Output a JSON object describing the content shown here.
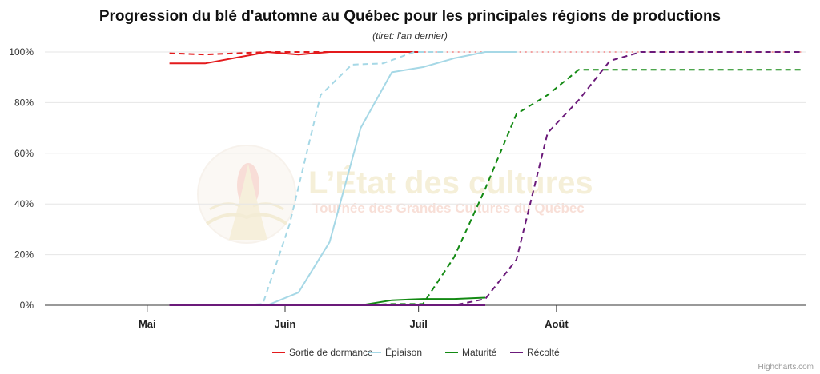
{
  "chart_data": {
    "type": "line",
    "title": "Progression du blé d'automne au Québec pour les principales régions de productions",
    "subtitle": "(tiret: l'an dernier)",
    "ylim": [
      0,
      100
    ],
    "yticks": [
      "0%",
      "20%",
      "40%",
      "60%",
      "80%",
      "100%"
    ],
    "ytick_values": [
      0,
      20,
      40,
      60,
      80,
      100
    ],
    "xlim": [
      "2024-04-08",
      "2024-09-26"
    ],
    "xticks": [
      {
        "date": "2024-05-01",
        "label": "Mai"
      },
      {
        "date": "2024-06-01",
        "label": "Juin"
      },
      {
        "date": "2024-07-01",
        "label": "Juil"
      },
      {
        "date": "2024-08-01",
        "label": "Août"
      }
    ],
    "grid": true,
    "legend_position": "bottom-center",
    "series": [
      {
        "name": "Sortie de dormance",
        "color": "#e31a1c",
        "dash": false,
        "points": [
          [
            "2024-05-06",
            95.5
          ],
          [
            "2024-05-14",
            95.5
          ],
          [
            "2024-05-28",
            100
          ],
          [
            "2024-06-04",
            99
          ],
          [
            "2024-06-11",
            100
          ],
          [
            "2024-06-18",
            100
          ],
          [
            "2024-06-25",
            100
          ],
          [
            "2024-07-01",
            100
          ]
        ]
      },
      {
        "name": "Sortie de dormance",
        "color": "#e31a1c",
        "dash": true,
        "points": [
          [
            "2024-05-06",
            99.5
          ],
          [
            "2024-05-14",
            99
          ],
          [
            "2024-05-28",
            100
          ],
          [
            "2024-06-04",
            100
          ],
          [
            "2024-06-11",
            100
          ],
          [
            "2024-06-18",
            100
          ],
          [
            "2024-06-25",
            100
          ],
          [
            "2024-07-01",
            100
          ]
        ]
      },
      {
        "name": "Sortie de dormance",
        "color": "#f4a0a0",
        "dash": "dot",
        "points": [
          [
            "2024-07-01",
            100
          ],
          [
            "2024-09-25",
            100
          ]
        ]
      },
      {
        "name": "Épiaison",
        "color": "#a6d8e6",
        "dash": false,
        "points": [
          [
            "2024-05-06",
            0
          ],
          [
            "2024-05-14",
            0
          ],
          [
            "2024-05-21",
            0
          ],
          [
            "2024-05-28",
            0
          ],
          [
            "2024-06-04",
            5
          ],
          [
            "2024-06-11",
            25
          ],
          [
            "2024-06-18",
            70
          ],
          [
            "2024-06-25",
            92
          ],
          [
            "2024-07-02",
            94
          ],
          [
            "2024-07-09",
            97.5
          ],
          [
            "2024-07-16",
            100
          ],
          [
            "2024-07-23",
            100
          ]
        ]
      },
      {
        "name": "Épiaison",
        "color": "#a6d8e6",
        "dash": true,
        "points": [
          [
            "2024-05-06",
            0
          ],
          [
            "2024-05-14",
            0
          ],
          [
            "2024-05-21",
            0
          ],
          [
            "2024-05-27",
            0.5
          ],
          [
            "2024-06-02",
            32
          ],
          [
            "2024-06-09",
            83
          ],
          [
            "2024-06-16",
            95
          ],
          [
            "2024-06-23",
            95.5
          ],
          [
            "2024-06-30",
            100
          ],
          [
            "2024-07-07",
            100
          ]
        ]
      },
      {
        "name": "Maturité",
        "color": "#138a13",
        "dash": false,
        "points": [
          [
            "2024-05-06",
            0
          ],
          [
            "2024-05-28",
            0
          ],
          [
            "2024-06-18",
            0
          ],
          [
            "2024-06-25",
            2
          ],
          [
            "2024-07-02",
            2.5
          ],
          [
            "2024-07-09",
            2.5
          ],
          [
            "2024-07-16",
            3
          ]
        ]
      },
      {
        "name": "Maturité",
        "color": "#138a13",
        "dash": true,
        "points": [
          [
            "2024-05-06",
            0
          ],
          [
            "2024-06-18",
            0
          ],
          [
            "2024-06-25",
            0.5
          ],
          [
            "2024-07-02",
            0.5
          ],
          [
            "2024-07-09",
            19
          ],
          [
            "2024-07-16",
            46
          ],
          [
            "2024-07-23",
            75.5
          ],
          [
            "2024-07-30",
            83
          ],
          [
            "2024-08-06",
            93
          ],
          [
            "2024-08-13",
            93
          ],
          [
            "2024-09-25",
            93
          ]
        ]
      },
      {
        "name": "Récolté",
        "color": "#6b1a7a",
        "dash": false,
        "points": [
          [
            "2024-05-06",
            0
          ],
          [
            "2024-07-16",
            0
          ]
        ]
      },
      {
        "name": "Récolté",
        "color": "#6b1a7a",
        "dash": true,
        "points": [
          [
            "2024-05-06",
            0
          ],
          [
            "2024-07-09",
            0
          ],
          [
            "2024-07-16",
            2.5
          ],
          [
            "2024-07-23",
            18
          ],
          [
            "2024-07-30",
            68
          ],
          [
            "2024-08-06",
            81
          ],
          [
            "2024-08-13",
            96.5
          ],
          [
            "2024-08-20",
            100
          ],
          [
            "2024-09-25",
            100
          ]
        ]
      }
    ],
    "legend": [
      {
        "label": "Sortie de dormance",
        "color": "#e31a1c"
      },
      {
        "label": "Épiaison",
        "color": "#a6d8e6"
      },
      {
        "label": "Maturité",
        "color": "#138a13"
      },
      {
        "label": "Récolté",
        "color": "#6b1a7a"
      }
    ]
  },
  "watermark": {
    "title": "L’État des cultures",
    "subtitle": "Tournée des Grandes Cultures du Québec"
  },
  "credits": "Highcharts.com"
}
